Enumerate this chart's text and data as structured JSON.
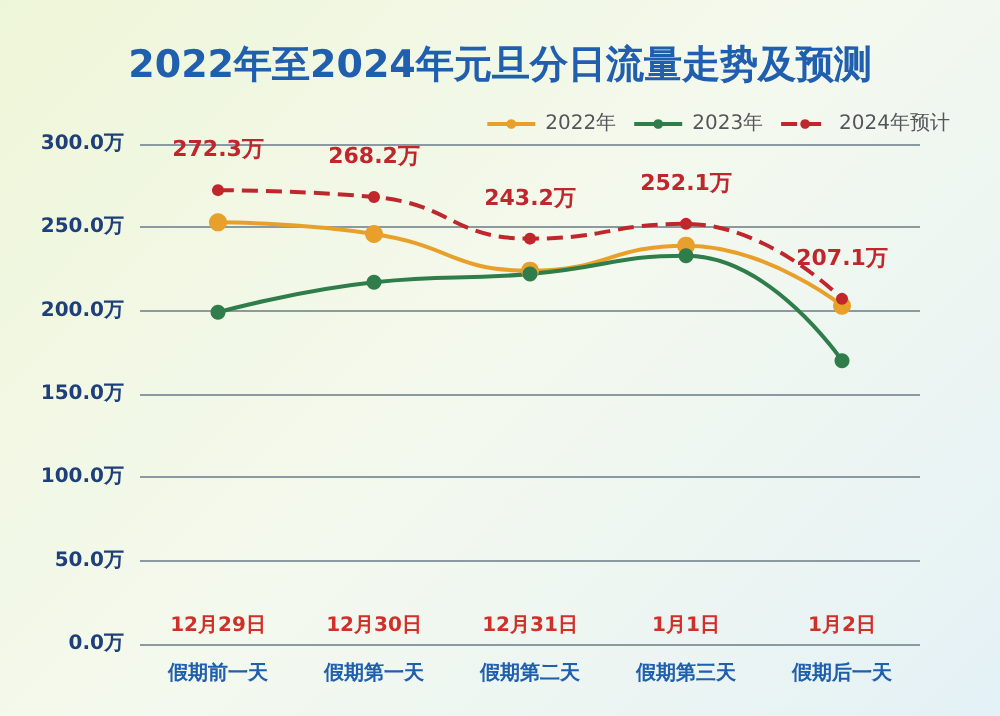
{
  "chart_data": {
    "type": "line",
    "title": "2022年至2024年元旦分日流量走势及预测",
    "categories": [
      "12月29日",
      "12月30日",
      "12月31日",
      "1月1日",
      "1月2日"
    ],
    "annotations": [
      "假期前一天",
      "假期第一天",
      "假期第二天",
      "假期第三天",
      "假期后一天"
    ],
    "series": [
      {
        "name": "2022年",
        "color": "#e8a02a",
        "values": [
          253,
          246,
          224,
          239,
          203
        ]
      },
      {
        "name": "2023年",
        "color": "#2e7d4a",
        "values": [
          199,
          217,
          222,
          233,
          170
        ]
      },
      {
        "name": "2024年预计",
        "color": "#c0272d",
        "line_style": "dashed",
        "values": [
          272.3,
          268.2,
          243.2,
          252.1,
          207.1
        ],
        "value_labels": [
          "272.3万",
          "268.2万",
          "243.2万",
          "252.1万",
          "207.1万"
        ]
      }
    ],
    "ylim": [
      0,
      300
    ],
    "yticks": [
      {
        "value": 0,
        "label": "0.0万"
      },
      {
        "value": 50,
        "label": "50.0万"
      },
      {
        "value": 100,
        "label": "100.0万"
      },
      {
        "value": 150,
        "label": "150.0万"
      },
      {
        "value": 200,
        "label": "200.0万"
      },
      {
        "value": 250,
        "label": "250.0万"
      },
      {
        "value": 300,
        "label": "300.0万"
      }
    ],
    "grid": "y",
    "legend": "top right",
    "marker": "circle"
  }
}
